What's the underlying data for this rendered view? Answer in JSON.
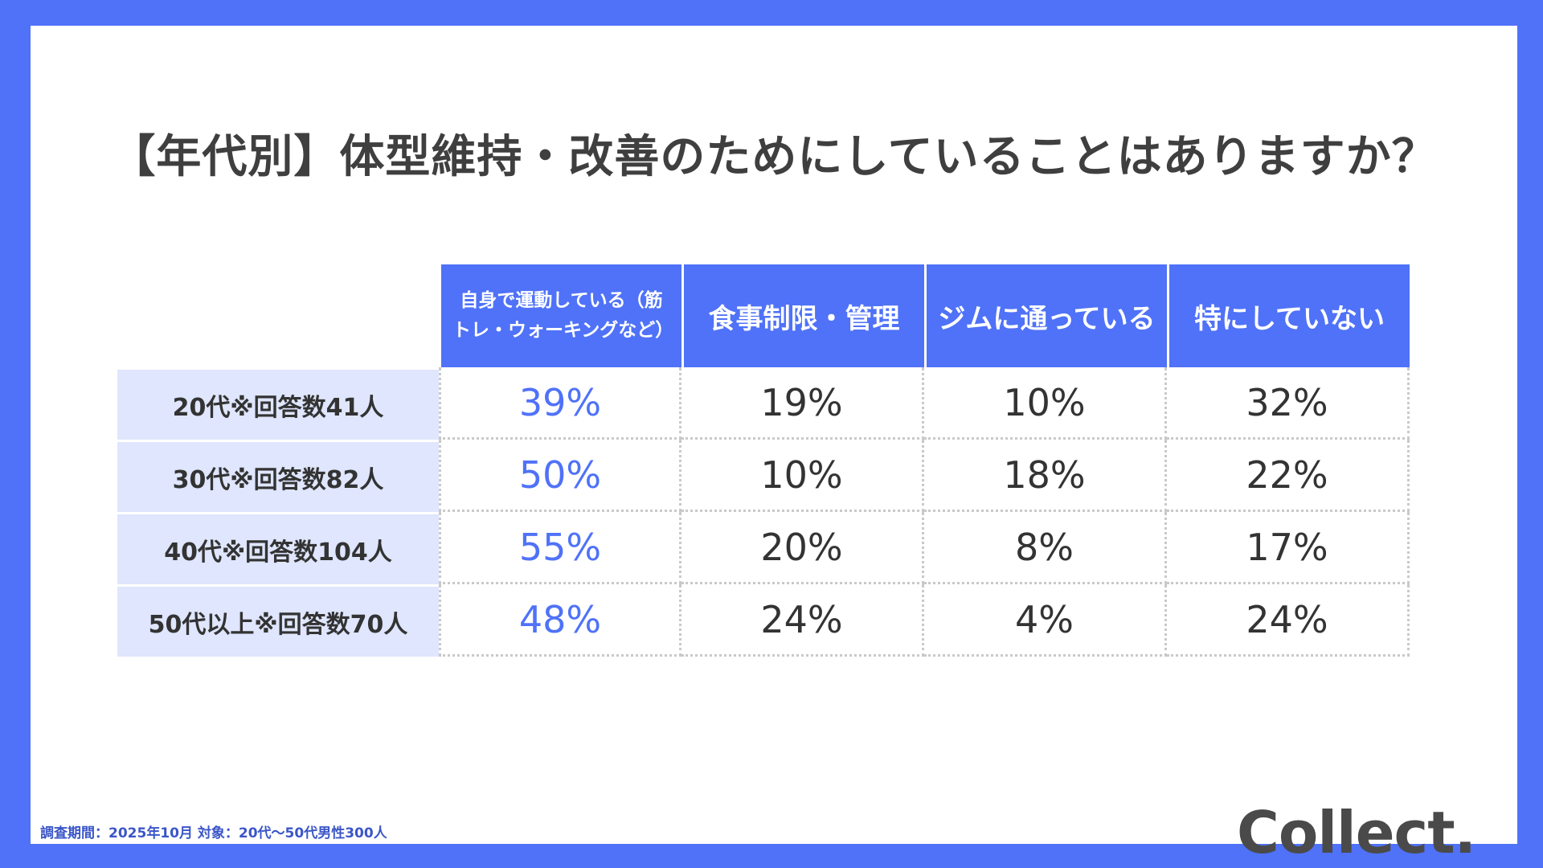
{
  "title": "【年代別】体型維持・改善のためにしていることはありますか？",
  "chart_data": {
    "type": "table",
    "columns": [
      "自身で運動している（筋トレ・ウォーキングなど）",
      "食事制限・管理",
      "ジムに通っている",
      "特にしていない"
    ],
    "rows": [
      {
        "label": "20代※回答数41人",
        "values": [
          "39%",
          "19%",
          "10%",
          "32%"
        ]
      },
      {
        "label": "30代※回答数82人",
        "values": [
          "50%",
          "10%",
          "18%",
          "22%"
        ]
      },
      {
        "label": "40代※回答数104人",
        "values": [
          "55%",
          "20%",
          "8%",
          "17%"
        ]
      },
      {
        "label": "50代以上※回答数70人",
        "values": [
          "48%",
          "24%",
          "4%",
          "24%"
        ]
      }
    ]
  },
  "footnote": "調査期間：2025年10月  対象：20代〜50代男性300人",
  "logo": "Collect.",
  "colors": {
    "accent": "#4f72f8",
    "row_label_bg": "#dfe6fd",
    "text": "#333333"
  }
}
